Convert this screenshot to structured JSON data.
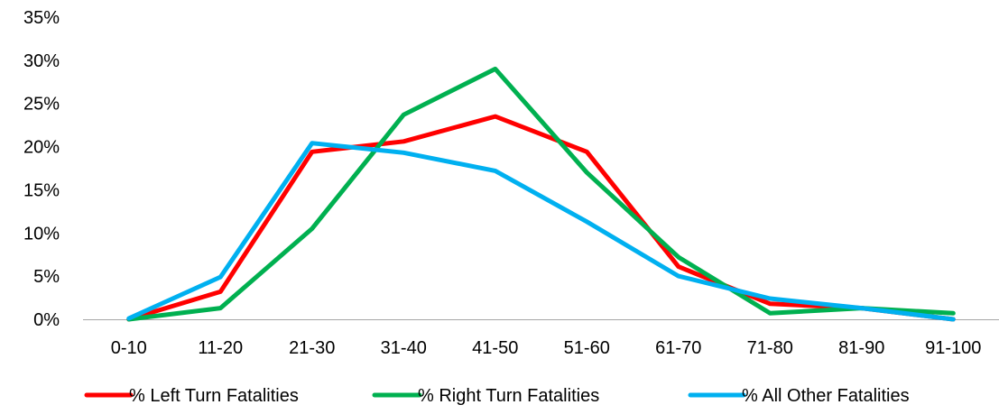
{
  "chart_data": {
    "type": "line",
    "title": "",
    "xlabel": "",
    "ylabel": "",
    "categories": [
      "0-10",
      "11-20",
      "21-30",
      "31-40",
      "41-50",
      "51-60",
      "61-70",
      "71-80",
      "81-90",
      "91-100"
    ],
    "ylim": [
      0,
      35
    ],
    "yticks": [
      0,
      5,
      10,
      15,
      20,
      25,
      30,
      35
    ],
    "ytick_labels": [
      "0%",
      "5%",
      "10%",
      "15%",
      "20%",
      "25%",
      "30%",
      "35%"
    ],
    "grid": false,
    "legend_position": "bottom",
    "series": [
      {
        "name": "% Left Turn Fatalities",
        "color": "#ff0000",
        "values": [
          0,
          3.2,
          19.4,
          20.6,
          23.5,
          19.4,
          6.1,
          1.8,
          1.3,
          0
        ]
      },
      {
        "name": "% Right Turn Fatalities",
        "color": "#00b050",
        "values": [
          0,
          1.3,
          10.5,
          23.7,
          29.0,
          17.0,
          7.2,
          0.7,
          1.3,
          0.7
        ]
      },
      {
        "name": "% All Other Fatalities",
        "color": "#00b0f0",
        "values": [
          0.1,
          4.9,
          20.4,
          19.3,
          17.2,
          11.3,
          5.0,
          2.4,
          1.3,
          0
        ]
      }
    ]
  }
}
